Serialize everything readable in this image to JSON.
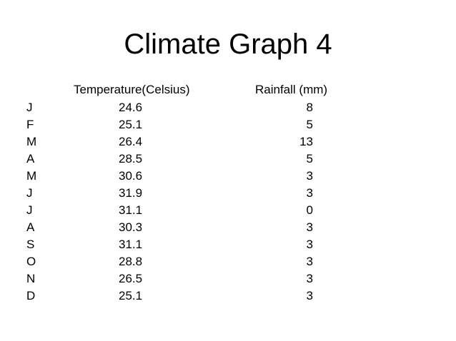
{
  "title": "Climate Graph 4",
  "headers": {
    "temperature": "Temperature(Celsius)",
    "rainfall": "Rainfall (mm)"
  },
  "rows": [
    {
      "month": "J",
      "temperature": "24.6",
      "rainfall": "8"
    },
    {
      "month": "F",
      "temperature": "25.1",
      "rainfall": "5"
    },
    {
      "month": "M",
      "temperature": "26.4",
      "rainfall": "13"
    },
    {
      "month": "A",
      "temperature": "28.5",
      "rainfall": "5"
    },
    {
      "month": "M",
      "temperature": "30.6",
      "rainfall": "3"
    },
    {
      "month": "J",
      "temperature": "31.9",
      "rainfall": "3"
    },
    {
      "month": "J",
      "temperature": "31.1",
      "rainfall": "0"
    },
    {
      "month": "A",
      "temperature": "30.3",
      "rainfall": "3"
    },
    {
      "month": "S",
      "temperature": "31.1",
      "rainfall": "3"
    },
    {
      "month": "O",
      "temperature": "28.8",
      "rainfall": "3"
    },
    {
      "month": "N",
      "temperature": "26.5",
      "rainfall": "3"
    },
    {
      "month": "D",
      "temperature": "25.1",
      "rainfall": "3"
    }
  ]
}
